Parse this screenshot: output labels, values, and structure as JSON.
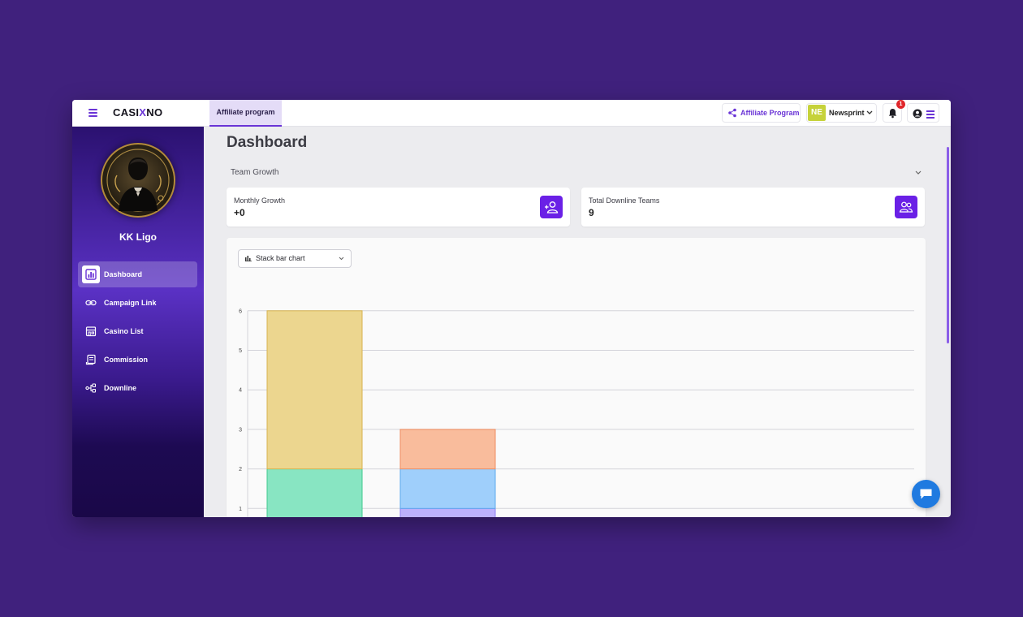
{
  "header": {
    "logo_pre": "CASI",
    "logo_x": "X",
    "logo_post": "NO",
    "active_tab": "Affiliate program",
    "affiliate_button": "Affiliate Program",
    "workspace_initials": "NE",
    "workspace_name": "Newsprint",
    "notification_count": "1"
  },
  "sidebar": {
    "user_name": "KK Ligo",
    "items": [
      {
        "label": "Dashboard",
        "icon": "bar-chart-icon",
        "active": true
      },
      {
        "label": "Campaign Link",
        "icon": "link-icon",
        "active": false
      },
      {
        "label": "Casino List",
        "icon": "store-icon",
        "active": false
      },
      {
        "label": "Commission",
        "icon": "receipt-icon",
        "active": false
      },
      {
        "label": "Downline",
        "icon": "hierarchy-icon",
        "active": false
      }
    ]
  },
  "main": {
    "title": "Dashboard",
    "section_title": "Team Growth",
    "stats": [
      {
        "label": "Monthly Growth",
        "value": "+0",
        "icon": "add-user-icon"
      },
      {
        "label": "Total Downline Teams",
        "value": "9",
        "icon": "team-icon"
      }
    ],
    "chart_type_select": "Stack bar chart"
  },
  "colors": {
    "accent": "#6a34d6",
    "background": "#40217d",
    "stat_icon_bg": "#6a20e6",
    "chat": "#1f7ae0"
  },
  "chart_data": {
    "type": "bar",
    "stacked": true,
    "ylim": [
      0,
      6
    ],
    "yticks": [
      1,
      2,
      3,
      4,
      5,
      6
    ],
    "grid": true,
    "stacks": [
      {
        "segments": [
          {
            "value": 2,
            "fill": "#88e5c2",
            "stroke": "#3fc98e"
          },
          {
            "value": 4,
            "fill": "#ecd68f",
            "stroke": "#d7b24d"
          }
        ]
      },
      {
        "segments": [
          {
            "value": 1,
            "fill": "#bcb0fb",
            "stroke": "#8e7ef0"
          },
          {
            "value": 1,
            "fill": "#9fcffb",
            "stroke": "#5ea9ee"
          },
          {
            "value": 1,
            "fill": "#f9bc9c",
            "stroke": "#ee8d62"
          }
        ]
      }
    ]
  }
}
